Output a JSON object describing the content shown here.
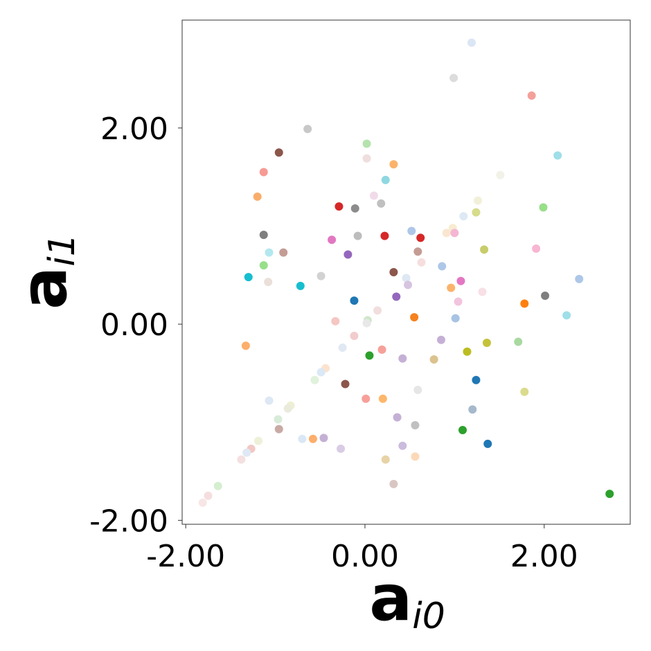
{
  "chart_data": {
    "type": "scatter",
    "xlabel": "a",
    "xlabel_sub": "i0",
    "ylabel": "a",
    "ylabel_sub": "i1",
    "xlim": [
      -2.04,
      2.96
    ],
    "ylim": [
      -2.04,
      3.1
    ],
    "xticks": [
      {
        "value": -2,
        "label": "-2.00"
      },
      {
        "value": 0,
        "label": "0.00"
      },
      {
        "value": 2,
        "label": "2.00"
      }
    ],
    "yticks": [
      {
        "value": -2,
        "label": "-2.00"
      },
      {
        "value": 0,
        "label": "0.00"
      },
      {
        "value": 2,
        "label": "2.00"
      }
    ],
    "x": [
      1.19,
      0.99,
      1.86,
      -0.64,
      0.02,
      -0.96,
      2.15,
      0.02,
      0.32,
      -1.13,
      1.51,
      0.23,
      -1.2,
      0.1,
      1.26,
      0.18,
      -0.29,
      -0.11,
      1.99,
      1.24,
      1.1,
      0.52,
      0.98,
      0.91,
      1.0,
      -1.13,
      0.22,
      -0.08,
      0.62,
      -0.37,
      1.33,
      1.91,
      -1.07,
      -0.91,
      0.59,
      -0.19,
      0.63,
      -1.13,
      0.86,
      0.32,
      -1.3,
      -0.49,
      0.46,
      2.39,
      -1.08,
      1.07,
      -0.72,
      0.48,
      0.96,
      1.31,
      2.01,
      0.35,
      -0.12,
      1.04,
      1.78,
      0.14,
      2.25,
      0.55,
      1.01,
      0.03,
      0.02,
      -0.33,
      -0.12,
      0.85,
      1.71,
      -1.33,
      1.36,
      -0.25,
      0.19,
      1.14,
      0.05,
      0.42,
      0.77,
      -0.44,
      -0.49,
      -0.56,
      -0.22,
      1.24,
      0.59,
      1.78,
      0.01,
      0.2,
      -1.07,
      -0.83,
      -0.86,
      1.2,
      0.36,
      -0.97,
      0.56,
      -0.96,
      1.09,
      -1.19,
      -0.7,
      -0.58,
      -0.46,
      1.37,
      0.42,
      -1.27,
      -1.32,
      -0.27,
      0.56,
      -1.38,
      0.23,
      0.32,
      -1.64,
      -1.75,
      -1.81,
      2.73
    ],
    "y": [
      2.87,
      2.51,
      2.33,
      1.99,
      1.84,
      1.75,
      1.72,
      1.69,
      1.63,
      1.55,
      1.52,
      1.47,
      1.3,
      1.31,
      1.26,
      1.23,
      1.2,
      1.18,
      1.19,
      1.14,
      1.1,
      0.95,
      0.98,
      0.93,
      0.93,
      0.91,
      0.9,
      0.9,
      0.88,
      0.86,
      0.76,
      0.77,
      0.73,
      0.73,
      0.74,
      0.71,
      0.63,
      0.6,
      0.59,
      0.53,
      0.48,
      0.49,
      0.47,
      0.46,
      0.43,
      0.44,
      0.39,
      0.4,
      0.37,
      0.33,
      0.29,
      0.28,
      0.24,
      0.23,
      0.21,
      0.14,
      0.09,
      0.07,
      0.06,
      0.04,
      0.01,
      0.03,
      -0.12,
      -0.16,
      -0.18,
      -0.22,
      -0.19,
      -0.24,
      -0.26,
      -0.28,
      -0.32,
      -0.35,
      -0.36,
      -0.45,
      -0.49,
      -0.57,
      -0.61,
      -0.57,
      -0.67,
      -0.69,
      -0.76,
      -0.76,
      -0.78,
      -0.83,
      -0.86,
      -0.87,
      -0.95,
      -0.97,
      -1.03,
      -1.07,
      -1.08,
      -1.19,
      -1.17,
      -1.17,
      -1.16,
      -1.22,
      -1.24,
      -1.27,
      -1.31,
      -1.27,
      -1.35,
      -1.38,
      -1.38,
      -1.63,
      -1.65,
      -1.75,
      -1.82,
      -1.73
    ],
    "colors": [
      "#dbe6f5",
      "#dcdcdc",
      "#f4a09a",
      "#c8c8c8",
      "#b5e3ad",
      "#8c564b",
      "#9fdfe8",
      "#f0dede",
      "#fbb36b",
      "#f79a95",
      "#f2f2e8",
      "#8fd8e1",
      "#f9ad6a",
      "#f1dbe9",
      "#f2f0d8",
      "#c0c0c0",
      "#d62728",
      "#8c8c8c",
      "#98df8a",
      "#d6dc8a",
      "#dde9f5",
      "#aec7e8",
      "#f8ecd0",
      "#fae6d0",
      "#f4b6d2",
      "#7f7f7f",
      "#d62728",
      "#bdbdbd",
      "#d62728",
      "#e377c2",
      "#c8cc6a",
      "#f7b6d2",
      "#b3e8ee",
      "#c49c94",
      "#c49c94",
      "#9467bd",
      "#f6dede",
      "#98df8a",
      "#aec7e8",
      "#8c564b",
      "#17becf",
      "#d2d2d2",
      "#dde8f3",
      "#aec7e8",
      "#eadfd9",
      "#e377c2",
      "#17becf",
      "#d6c4e0",
      "#fbb36b",
      "#f7e0e6",
      "#7f7f7f",
      "#9467bd",
      "#1f77b4",
      "#f2c4de",
      "#ff7f0e",
      "#f2dede",
      "#9fdfe8",
      "#f5821f",
      "#a8c3e3",
      "#cfe7c9",
      "#e8e8e8",
      "#f5c6c2",
      "#f2cccc",
      "#c5b0d5",
      "#a8d9a0",
      "#fdae6b",
      "#c4c23a",
      "#dfe8f3",
      "#f7a09a",
      "#bcbd22",
      "#2ca02c",
      "#c5b0d5",
      "#dbc28f",
      "#fbe3cf",
      "#dbe8f5",
      "#e0f1dc",
      "#8c564b",
      "#1f77b4",
      "#e6e6e6",
      "#dbdb8d",
      "#f7a09a",
      "#fdb76b",
      "#dde8f5",
      "#efefd6",
      "#eaeadd",
      "#a6b9cc",
      "#c5b0d5",
      "#d8ebd8",
      "#c0c0c0",
      "#c9aaa4",
      "#2ca02c",
      "#eef0d8",
      "#dae8f5",
      "#fdae6b",
      "#c5b0d5",
      "#1f77b4",
      "#cbbbdd",
      "#f2c8c4",
      "#dfe9f5",
      "#d9cce5",
      "#fbd9b8",
      "#f4e0e0",
      "#e7d3a6",
      "#d9c6c2",
      "#d5eed0",
      "#f6dede",
      "#f8e6e6",
      "#2ca02c"
    ]
  }
}
